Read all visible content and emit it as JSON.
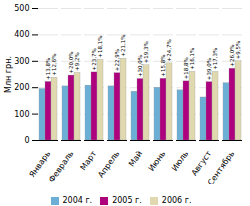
{
  "chart_data": {
    "type": "bar",
    "categories": [
      "Январь",
      "Февраль",
      "Март",
      "Апрель",
      "Май",
      "Июнь",
      "Июль",
      "Август",
      "Сентябрь"
    ],
    "series": [
      {
        "name": "2004 г.",
        "color": "#6baed6",
        "values": [
          195,
          205,
          208,
          205,
          185,
          200,
          190,
          163,
          217
        ]
      },
      {
        "name": "2005 г.",
        "color": "#ae017e",
        "values": [
          222,
          246,
          258,
          255,
          233,
          234,
          224,
          221,
          272
        ],
        "labels": [
          "+13,8%",
          "+20,0%",
          "+23,7%",
          "+22,9%",
          "+30,0%",
          "+15,8%",
          "+18,8%",
          "+39,0%",
          "+26,0%"
        ]
      },
      {
        "name": "2006 г.",
        "color": "#e0d9b0",
        "values": [
          238,
          256,
          306,
          310,
          285,
          292,
          260,
          260,
          300
        ],
        "labels": [
          "+12,6%",
          "+9,2%",
          "+18,1%",
          "+21,1%",
          "+19,3%",
          "+24,7%",
          "+16,1%",
          "+17,3%",
          "+9,5%"
        ]
      }
    ],
    "ylabel": "Млн грн.",
    "ylim": [
      0,
      500
    ],
    "yticks": [
      0,
      100,
      200,
      300,
      400,
      500
    ],
    "grid": true,
    "legend": "bottom"
  }
}
